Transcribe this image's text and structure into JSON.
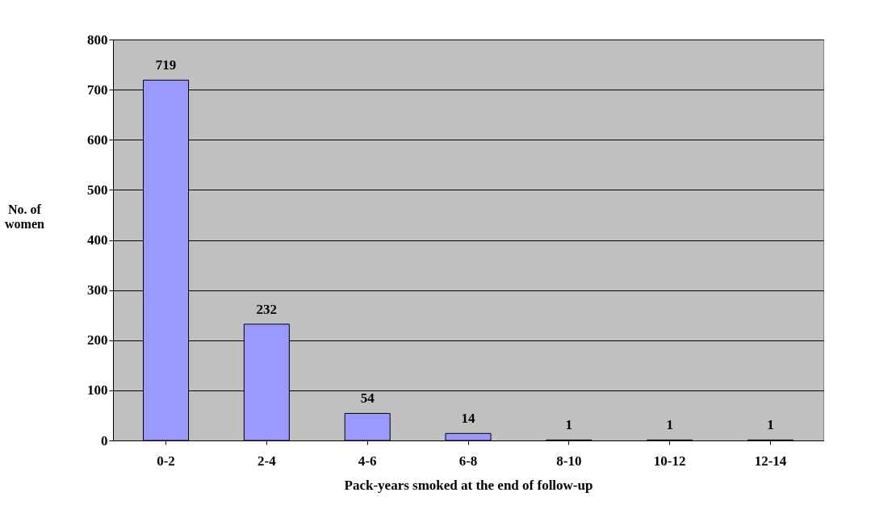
{
  "chart_data": {
    "type": "bar",
    "xlabel": "Pack-years smoked at the end of follow-up",
    "ylabel": "No. of women",
    "categories": [
      "0-2",
      "2-4",
      "4-6",
      "6-8",
      "8-10",
      "10-12",
      "12-14"
    ],
    "values": [
      719,
      232,
      54,
      14,
      1,
      1,
      1
    ],
    "color": "#9999ff",
    "ylim": [
      0,
      800
    ],
    "yticks": [
      0,
      100,
      200,
      300,
      400,
      500,
      600,
      700,
      800
    ],
    "grid": "y",
    "data_labels": true
  }
}
